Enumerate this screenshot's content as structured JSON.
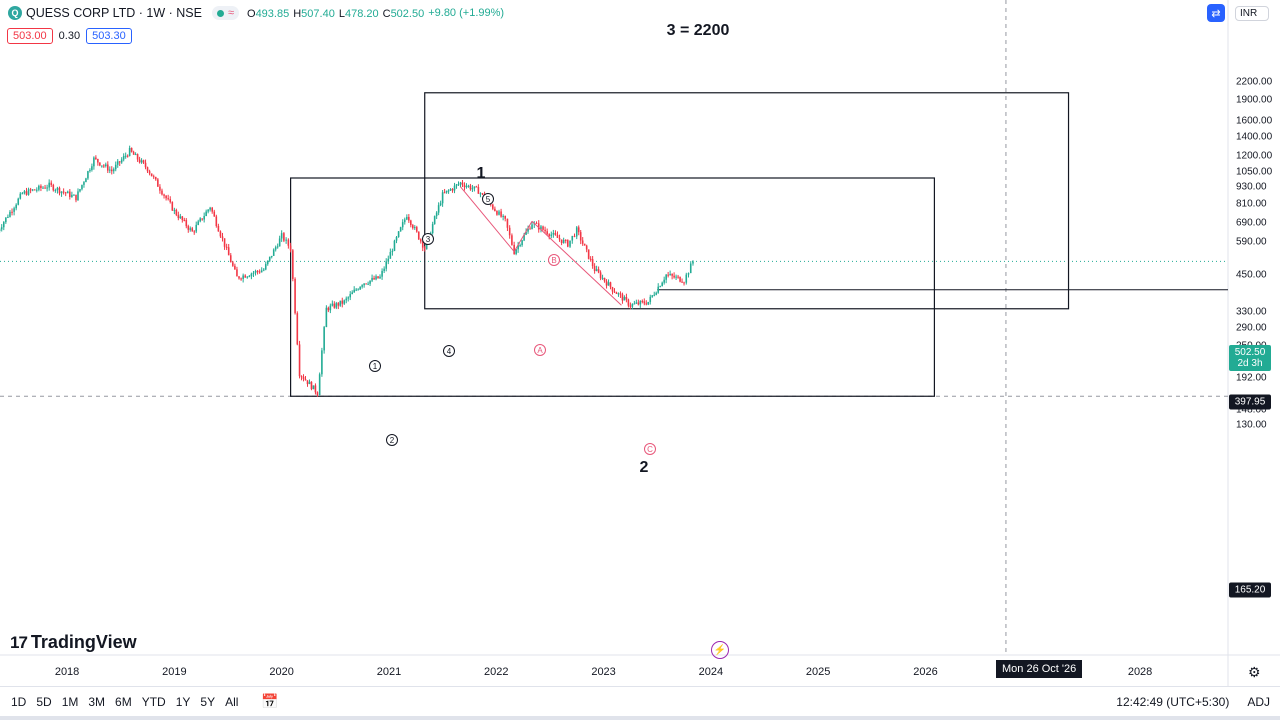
{
  "symbol": {
    "logo_letter": "Q",
    "title": "QUESS CORP LTD · 1W · NSE",
    "wave_icon": "≈",
    "ohlc": [
      {
        "k": "O",
        "v": "493.85"
      },
      {
        "k": "H",
        "v": "507.40"
      },
      {
        "k": "L",
        "v": "478.20"
      },
      {
        "k": "C",
        "v": "502.50"
      }
    ],
    "change": "+9.80 (+1.99%)",
    "bid": "503.00",
    "spread": "0.30",
    "ask": "503.30"
  },
  "toolbar": {
    "currency": "INR",
    "cycle_icon": "compare-arrows-icon"
  },
  "price_axis": {
    "labels": [
      "2200.00",
      "1900.00",
      "1600.00",
      "1400.00",
      "1200.00",
      "1050.00",
      "930.00",
      "810.00",
      "690.00",
      "590.00",
      "450.00",
      "330.00",
      "290.00",
      "250.00",
      "220.00",
      "192.00",
      "148.00",
      "130.00"
    ],
    "last_price": "502.50",
    "countdown": "2d 3h",
    "hline_price": "397.95",
    "low_price": "165.20"
  },
  "time_axis": {
    "labels": [
      "2018",
      "2019",
      "2020",
      "2021",
      "2022",
      "2023",
      "2024",
      "2025",
      "2026",
      "2028"
    ],
    "crosshair_date": "Mon 26 Oct '26"
  },
  "annotations": {
    "target": "3 = 2200",
    "wave_1": "1",
    "wave_2": "2",
    "sub_waves": [
      "1",
      "2",
      "3",
      "4",
      "5"
    ],
    "corrective": [
      "A",
      "B",
      "C"
    ]
  },
  "brand": {
    "logo_mark": "17",
    "name": "TradingView"
  },
  "bottom": {
    "ranges": [
      "1D",
      "5D",
      "1M",
      "3M",
      "6M",
      "YTD",
      "1Y",
      "5Y",
      "All"
    ],
    "clock": "12:42:49 (UTC+5:30)",
    "adj": "ADJ"
  },
  "colors": {
    "up": "#22ab94",
    "down": "#f23645",
    "accent": "#2962ff",
    "elliott_red": "#e8577a"
  },
  "chart_data": {
    "type": "candlestick",
    "title": "QUESS CORP LTD · 1W · NSE",
    "log_scale": true,
    "price_range": [
      125,
      2300
    ],
    "time_range": [
      "2017-05",
      "2028-08"
    ],
    "swing_path": [
      [
        "2017-05",
        630
      ],
      [
        "2017-08",
        880
      ],
      [
        "2017-11",
        940
      ],
      [
        "2018-02",
        850
      ],
      [
        "2018-04",
        1170
      ],
      [
        "2018-06",
        1060
      ],
      [
        "2018-08",
        1250
      ],
      [
        "2018-10",
        1080
      ],
      [
        "2019-01",
        760
      ],
      [
        "2019-03",
        640
      ],
      [
        "2019-05",
        790
      ],
      [
        "2019-08",
        440
      ],
      [
        "2019-11",
        470
      ],
      [
        "2020-01",
        620
      ],
      [
        "2020-02",
        560
      ],
      [
        "2020-03",
        200
      ],
      [
        "2020-05",
        170
      ],
      [
        "2020-06",
        340
      ],
      [
        "2020-08",
        360
      ],
      [
        "2020-10",
        420
      ],
      [
        "2020-12",
        440
      ],
      [
        "2021-03",
        740
      ],
      [
        "2021-05",
        560
      ],
      [
        "2021-07",
        870
      ],
      [
        "2021-09",
        960
      ],
      [
        "2021-11",
        900
      ],
      [
        "2022-02",
        700
      ],
      [
        "2022-03",
        545
      ],
      [
        "2022-05",
        690
      ],
      [
        "2022-06",
        660
      ],
      [
        "2022-09",
        580
      ],
      [
        "2022-10",
        650
      ],
      [
        "2022-12",
        470
      ],
      [
        "2023-02",
        400
      ],
      [
        "2023-04",
        350
      ],
      [
        "2023-06",
        360
      ],
      [
        "2023-08",
        450
      ],
      [
        "2023-10",
        430
      ],
      [
        "2023-11",
        502.5
      ]
    ]
  }
}
